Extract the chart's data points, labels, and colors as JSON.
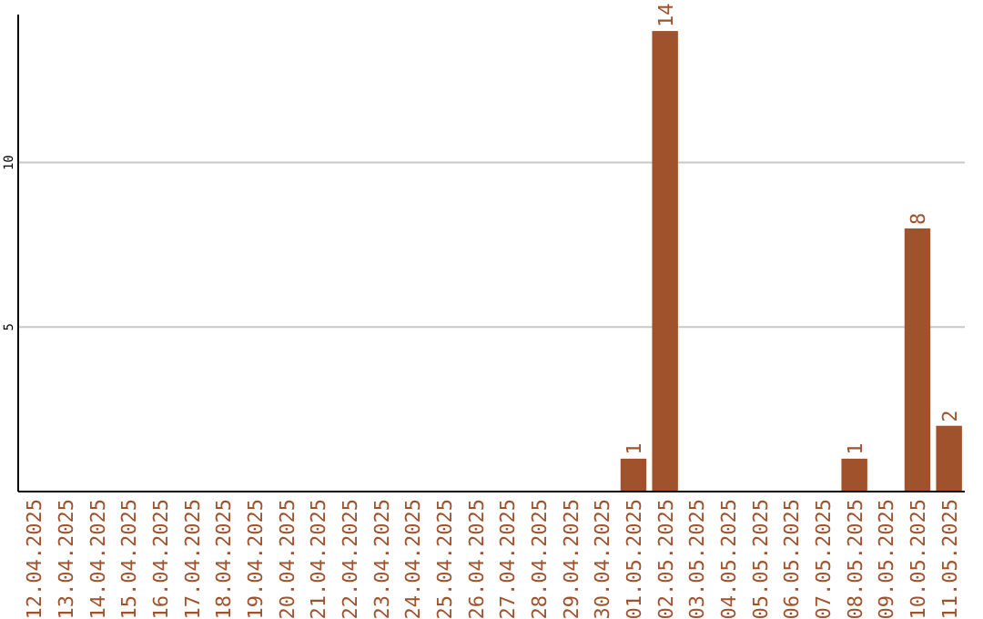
{
  "chart_data": {
    "type": "bar",
    "categories": [
      "12.04.2025",
      "13.04.2025",
      "14.04.2025",
      "15.04.2025",
      "16.04.2025",
      "17.04.2025",
      "18.04.2025",
      "19.04.2025",
      "20.04.2025",
      "21.04.2025",
      "22.04.2025",
      "23.04.2025",
      "24.04.2025",
      "25.04.2025",
      "26.04.2025",
      "27.04.2025",
      "28.04.2025",
      "29.04.2025",
      "30.04.2025",
      "01.05.2025",
      "02.05.2025",
      "03.05.2025",
      "04.05.2025",
      "05.05.2025",
      "06.05.2025",
      "07.05.2025",
      "08.05.2025",
      "09.05.2025",
      "10.05.2025",
      "11.05.2025"
    ],
    "values": [
      0,
      0,
      0,
      0,
      0,
      0,
      0,
      0,
      0,
      0,
      0,
      0,
      0,
      0,
      0,
      0,
      0,
      0,
      0,
      1,
      14,
      0,
      0,
      0,
      0,
      0,
      1,
      0,
      8,
      2
    ],
    "value_labels": [
      null,
      null,
      null,
      null,
      null,
      null,
      null,
      null,
      null,
      null,
      null,
      null,
      null,
      null,
      null,
      null,
      null,
      null,
      null,
      "1",
      "14",
      null,
      null,
      null,
      null,
      null,
      "1",
      null,
      "8",
      "2"
    ],
    "color": "#a0522d",
    "ylim": [
      0,
      14.5
    ],
    "yticks": [
      5,
      10
    ],
    "grid": "y"
  }
}
